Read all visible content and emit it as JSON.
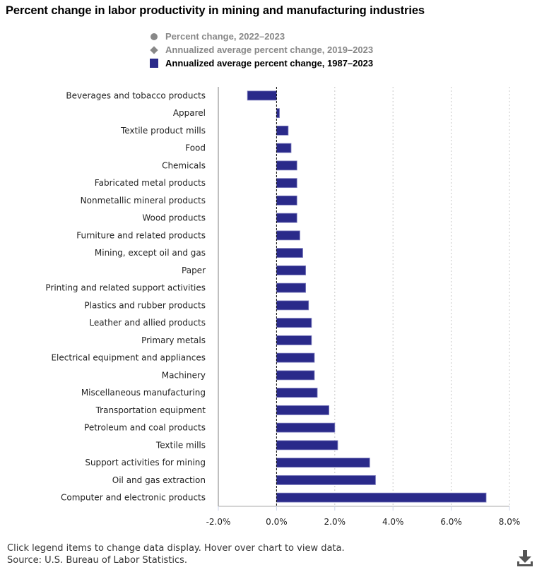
{
  "chart_data": {
    "type": "bar",
    "orientation": "horizontal",
    "title": "Percent change in labor productivity in mining and manufacturing industries",
    "legend": [
      {
        "label": "Percent change, 2022–2023",
        "symbol": "circle",
        "active": false,
        "color": "#888888"
      },
      {
        "label": "Annualized average percent change, 2019–2023",
        "symbol": "diamond",
        "active": false,
        "color": "#888888"
      },
      {
        "label": "Annualized average percent change, 1987–2023",
        "symbol": "square",
        "active": true,
        "color": "#2a2a8a"
      }
    ],
    "categories": [
      "Beverages and tobacco products",
      "Apparel",
      "Textile product mills",
      "Food",
      "Chemicals",
      "Fabricated metal products",
      "Nonmetallic mineral products",
      "Wood products",
      "Furniture and related products",
      "Mining, except oil and gas",
      "Paper",
      "Printing and related support activities",
      "Plastics and rubber products",
      "Leather and allied products",
      "Primary metals",
      "Electrical equipment and appliances",
      "Machinery",
      "Miscellaneous manufacturing",
      "Transportation equipment",
      "Petroleum and coal products",
      "Textile mills",
      "Support activities for mining",
      "Oil and gas extraction",
      "Computer and electronic products"
    ],
    "series": [
      {
        "name": "Annualized average percent change, 1987–2023",
        "color": "#2a2a8a",
        "values": [
          -1.0,
          0.1,
          0.4,
          0.5,
          0.7,
          0.7,
          0.7,
          0.7,
          0.8,
          0.9,
          1.0,
          1.0,
          1.1,
          1.2,
          1.2,
          1.3,
          1.3,
          1.4,
          1.8,
          2.0,
          2.1,
          3.2,
          3.4,
          7.2
        ]
      }
    ],
    "xlim": [
      -2.0,
      8.0
    ],
    "xticks": [
      -2.0,
      0.0,
      2.0,
      4.0,
      6.0,
      8.0
    ],
    "xtick_labels": [
      "-2.0%",
      "0.0%",
      "2.0%",
      "4.0%",
      "6.0%",
      "8.0%"
    ],
    "xlabel": "",
    "ylabel": "",
    "grid": "vertical dotted",
    "legend_position": "top-center"
  },
  "footer": {
    "note": "Click legend items to change data display. Hover over chart to view data.",
    "source": "Source: U.S. Bureau of Labor Statistics."
  },
  "icons": {
    "download": "download-icon"
  }
}
